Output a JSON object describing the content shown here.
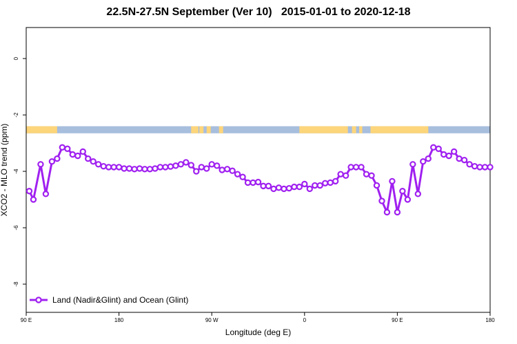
{
  "chart_data": {
    "type": "line",
    "title": "22.5N-27.5N September (Ver 10)   2015-01-01 to 2020-12-18",
    "xlabel": "Longitude (deg E)",
    "ylabel": "XCO2 - MLO trend (ppm)",
    "xlim": [
      90,
      540
    ],
    "ylim": [
      -9,
      1.1
    ],
    "x_ticks": [
      {
        "value": 90,
        "label": "90 E"
      },
      {
        "value": 180,
        "label": "180"
      },
      {
        "value": 270,
        "label": "90 W"
      },
      {
        "value": 360,
        "label": "0"
      },
      {
        "value": 450,
        "label": "90 E"
      },
      {
        "value": 540,
        "label": "180"
      }
    ],
    "y_ticks": [
      {
        "value": 0,
        "label": "0"
      },
      {
        "value": -2,
        "label": "-2"
      },
      {
        "value": -4,
        "label": "-4"
      },
      {
        "value": -6,
        "label": "-6"
      },
      {
        "value": -8,
        "label": "-8"
      }
    ],
    "grid": false,
    "legend_position": "bottom-left",
    "map_strip": {
      "y_range": [
        -2.65,
        -2.4
      ],
      "ocean_color": "#a7bedd",
      "land_color": "#fdd57a",
      "land_segments_lon": [
        [
          90,
          120
        ],
        [
          250,
          257
        ],
        [
          258,
          262
        ],
        [
          265,
          269
        ],
        [
          277,
          281
        ],
        [
          355,
          402
        ],
        [
          406,
          410
        ],
        [
          413,
          416
        ],
        [
          424,
          480
        ]
      ]
    },
    "series": [
      {
        "name": "Land (Nadir&Glint) and Ocean (Glint)",
        "color": "#a020f0",
        "x": [
          93,
          97,
          104,
          109,
          115,
          120,
          125,
          130,
          135,
          140,
          145,
          150,
          155,
          160,
          165,
          170,
          175,
          180,
          185,
          190,
          195,
          200,
          205,
          210,
          215,
          220,
          225,
          230,
          235,
          240,
          245,
          250,
          255,
          260,
          265,
          270,
          275,
          280,
          285,
          290,
          295,
          300,
          305,
          310,
          315,
          320,
          325,
          330,
          335,
          340,
          345,
          350,
          355,
          360,
          365,
          370,
          375,
          380,
          385,
          390,
          395,
          400,
          405,
          410,
          415,
          420,
          425,
          430,
          435,
          440,
          445,
          450,
          455,
          460,
          465,
          470,
          475,
          480,
          485,
          490,
          495,
          500,
          505,
          510,
          515,
          520,
          525,
          530,
          535,
          540
        ],
        "y": [
          -4.7,
          -5.0,
          -3.75,
          -4.8,
          -3.65,
          -3.55,
          -3.15,
          -3.2,
          -3.4,
          -3.45,
          -3.3,
          -3.55,
          -3.65,
          -3.75,
          -3.82,
          -3.85,
          -3.85,
          -3.85,
          -3.9,
          -3.9,
          -3.92,
          -3.9,
          -3.92,
          -3.92,
          -3.9,
          -3.85,
          -3.85,
          -3.83,
          -3.8,
          -3.75,
          -3.68,
          -3.78,
          -4.0,
          -3.85,
          -3.9,
          -3.75,
          -3.8,
          -3.95,
          -3.92,
          -3.98,
          -4.1,
          -4.2,
          -4.4,
          -4.4,
          -4.38,
          -4.52,
          -4.52,
          -4.62,
          -4.58,
          -4.62,
          -4.6,
          -4.55,
          -4.55,
          -4.45,
          -4.62,
          -4.5,
          -4.5,
          -4.42,
          -4.4,
          -4.35,
          -4.1,
          -4.15,
          -3.85,
          -3.85,
          -3.85,
          -4.1,
          -4.15,
          -4.5,
          -5.05,
          -5.45,
          -4.35,
          -5.45,
          -4.7,
          -5.0,
          -3.75,
          -4.8,
          -3.65,
          -3.55,
          -3.15,
          -3.2,
          -3.4,
          -3.45,
          -3.3,
          -3.55,
          -3.6,
          -3.75,
          -3.82,
          -3.85,
          -3.85,
          -3.85
        ]
      }
    ]
  }
}
